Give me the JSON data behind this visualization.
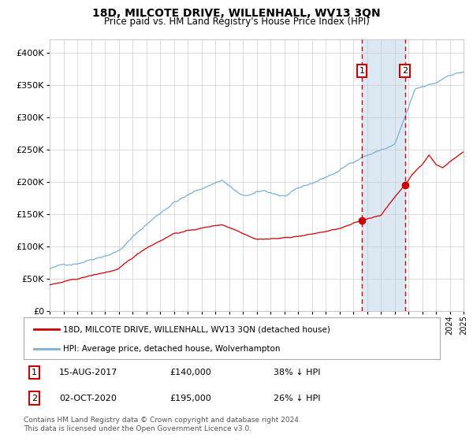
{
  "title": "18D, MILCOTE DRIVE, WILLENHALL, WV13 3QN",
  "subtitle": "Price paid vs. HM Land Registry's House Price Index (HPI)",
  "hpi_label": "HPI: Average price, detached house, Wolverhampton",
  "property_label": "18D, MILCOTE DRIVE, WILLENHALL, WV13 3QN (detached house)",
  "sale1_date": "15-AUG-2017",
  "sale1_price": 140000,
  "sale1_pct": "38% ↓ HPI",
  "sale2_date": "02-OCT-2020",
  "sale2_price": 195000,
  "sale2_pct": "26% ↓ HPI",
  "footer": "Contains HM Land Registry data © Crown copyright and database right 2024.\nThis data is licensed under the Open Government Licence v3.0.",
  "ylim": [
    0,
    420000
  ],
  "hpi_color": "#7bafd4",
  "property_color": "#cc0000",
  "sale_marker_color": "#cc0000",
  "vline_color": "#cc0000",
  "shade_color": "#dce9f5",
  "grid_color": "#cccccc",
  "background_color": "#ffffff",
  "sale1_year": 2017.62,
  "sale2_year": 2020.75,
  "yticks": [
    0,
    50000,
    100000,
    150000,
    200000,
    250000,
    300000,
    350000,
    400000
  ],
  "ylabels": [
    "£0",
    "£50K",
    "£100K",
    "£150K",
    "£200K",
    "£250K",
    "£300K",
    "£350K",
    "£400K"
  ]
}
